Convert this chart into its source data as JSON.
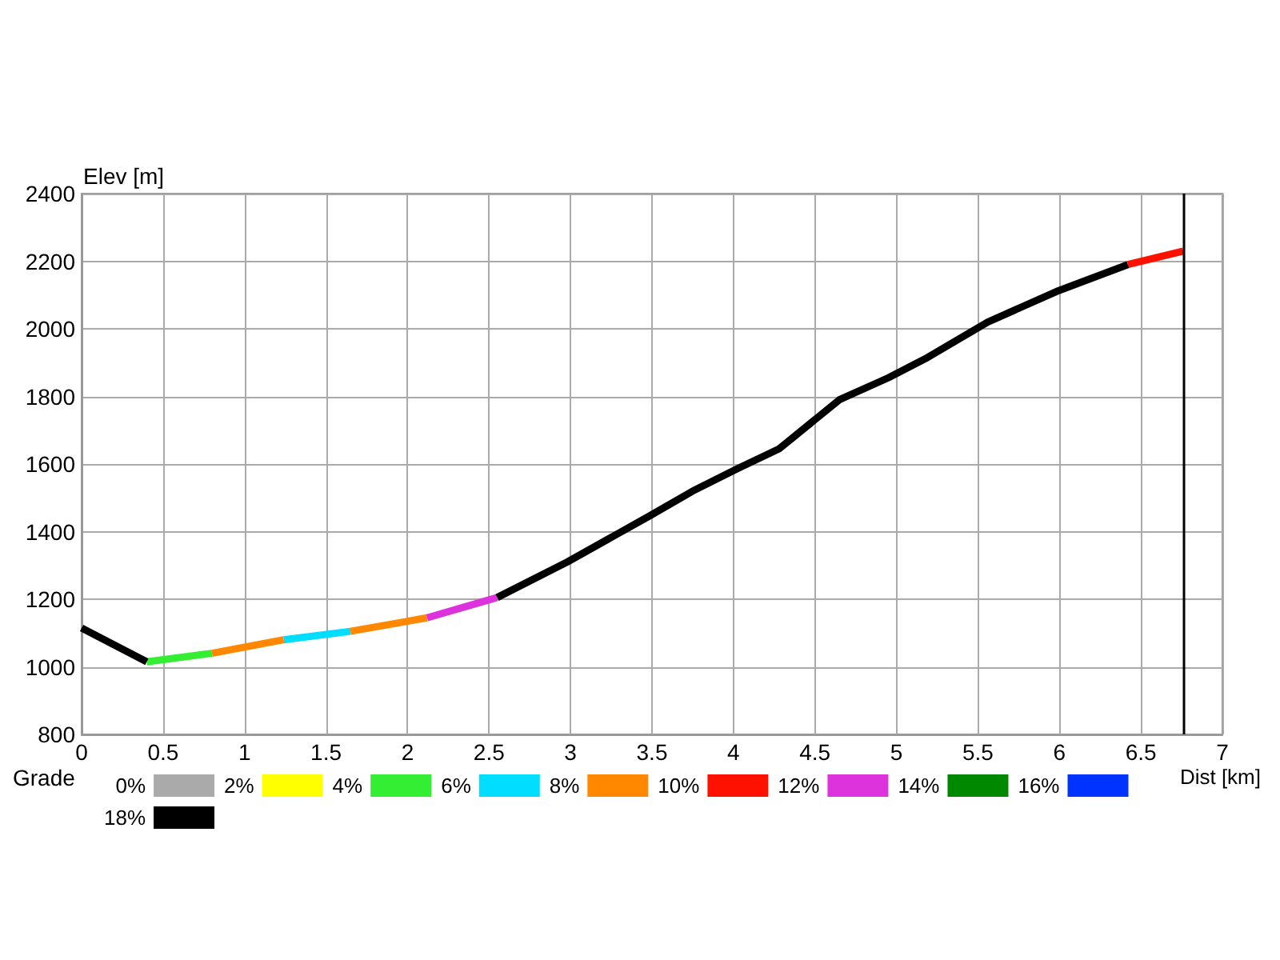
{
  "chart_data": {
    "type": "line",
    "xlabel": "Dist [km]",
    "ylabel": "Elev [m]",
    "legend_title": "Grade",
    "xlim": [
      0,
      7
    ],
    "xticks": [
      0,
      0.5,
      1,
      1.5,
      2,
      2.5,
      3,
      3.5,
      4,
      4.5,
      5,
      5.5,
      6,
      6.5,
      7
    ],
    "ylim": [
      800,
      2400
    ],
    "yticks": [
      800,
      1000,
      1200,
      1400,
      1600,
      1800,
      2000,
      2200,
      2400
    ],
    "grid": true,
    "legend": "bottom",
    "marker": "none",
    "line_style": "solid",
    "ref_lines": [
      {
        "axis": "x",
        "value": 6.76,
        "color": "#000000"
      }
    ],
    "series": [
      {
        "name": "0%",
        "color": "#aaaaaa"
      },
      {
        "name": "2%",
        "color": "#ffff00"
      },
      {
        "name": "4%",
        "color": "#33ee33",
        "x": [
          0.4,
          0.8
        ],
        "values": [
          1015,
          1040
        ]
      },
      {
        "name": "6%",
        "color": "#00ddff",
        "x": [
          1.24,
          1.65
        ],
        "values": [
          1080,
          1105
        ]
      },
      {
        "name": "8%",
        "color": "#ff8800",
        "x": [
          0.8,
          1.24,
          1.4,
          1.65,
          2.12
        ],
        "values": [
          1040,
          1080,
          null,
          1105,
          1145
        ]
      },
      {
        "name": "10%",
        "color": "#ff1100",
        "x": [
          6.42,
          6.76
        ],
        "values": [
          2190,
          2230
        ]
      },
      {
        "name": "12%",
        "color": "#dd33dd",
        "x": [
          2.12,
          2.55
        ],
        "values": [
          1145,
          1205
        ]
      },
      {
        "name": "14%",
        "color": "#008800"
      },
      {
        "name": "16%",
        "color": "#0033ff"
      },
      {
        "name": "18%",
        "color": "#000000",
        "x": [
          0,
          0.4,
          1.5,
          2.55,
          2.98,
          3.48,
          3.75,
          4.02,
          4.28,
          4.65,
          4.95,
          5.19,
          5.56,
          5.98,
          6.42
        ],
        "values": [
          1115,
          1015,
          null,
          1205,
          1310,
          1445,
          1520,
          1585,
          1645,
          1790,
          1855,
          1915,
          2020,
          2110,
          2190
        ]
      }
    ]
  }
}
